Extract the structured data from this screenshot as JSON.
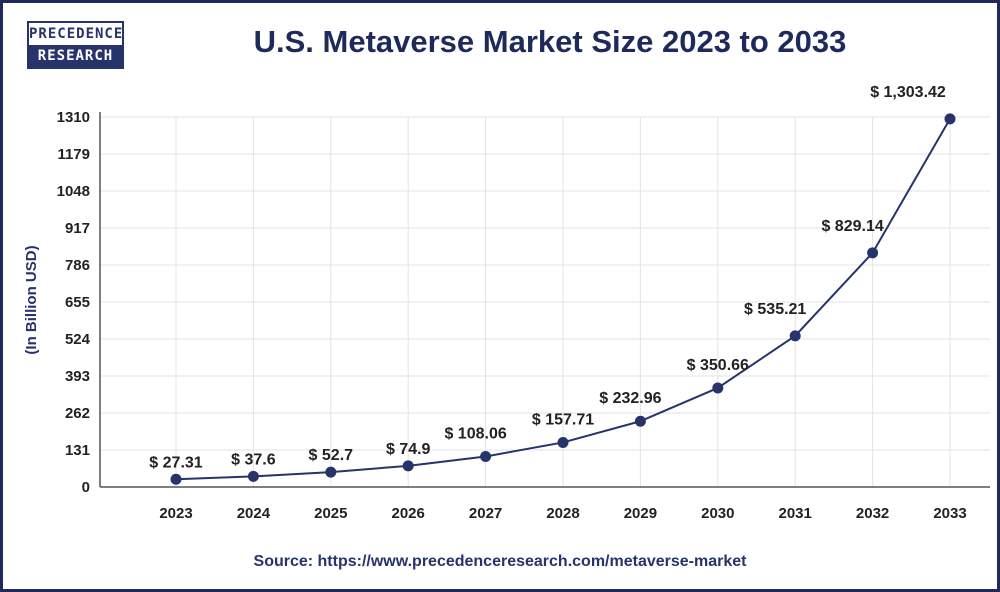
{
  "logo": {
    "line1": "PRECEDENCE",
    "line2": "RESEARCH"
  },
  "source": "Source: https://www.precedenceresearch.com/metaverse-market",
  "colors": {
    "line": "#27336b",
    "title": "#1f2a5c",
    "grid": "#e3e3e3"
  },
  "chart_data": {
    "type": "line",
    "title": "U.S. Metaverse Market Size 2023 to 2033",
    "xlabel": "",
    "ylabel": "(In Billion USD)",
    "categories": [
      "2023",
      "2024",
      "2025",
      "2026",
      "2027",
      "2028",
      "2029",
      "2030",
      "2031",
      "2032",
      "2033"
    ],
    "values": [
      27.31,
      37.6,
      52.7,
      74.9,
      108.06,
      157.71,
      232.96,
      350.66,
      535.21,
      829.14,
      1303.42
    ],
    "data_labels": [
      "$ 27.31",
      "$ 37.6",
      "$ 52.7",
      "$ 74.9",
      "$ 108.06",
      "$ 157.71",
      "$ 232.96",
      "$ 350.66",
      "$ 535.21",
      "$ 829.14",
      "$ 1,303.42"
    ],
    "yticks": [
      0,
      131,
      262,
      393,
      524,
      655,
      786,
      917,
      1048,
      1179,
      1310
    ],
    "ylim": [
      0,
      1310
    ],
    "grid": true,
    "legend": "none"
  }
}
